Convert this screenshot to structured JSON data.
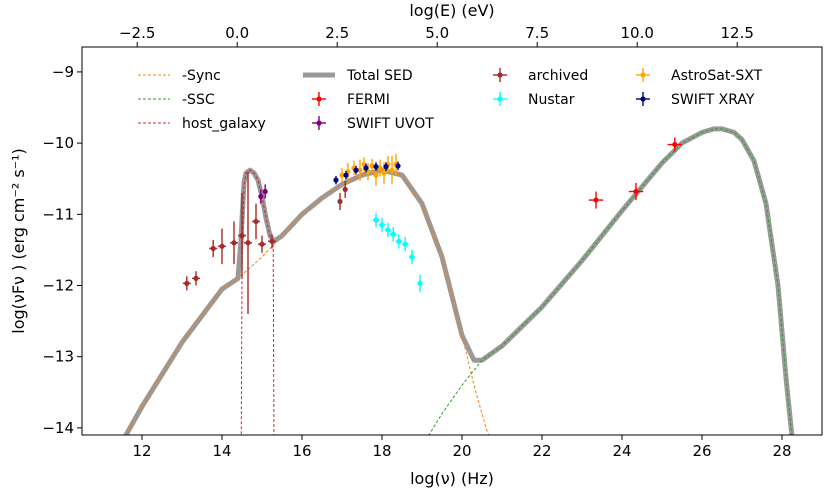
{
  "chart_data": {
    "type": "scatter",
    "xlabel": "log(ν)  (Hz)",
    "ylabel": "log(νFν )  (erg cm⁻² s⁻¹)",
    "top_xlabel": "log(E) (eV)",
    "xlim": [
      10.5,
      29.0
    ],
    "ylim": [
      -14.1,
      -8.65
    ],
    "top_xlim": [
      -3.88,
      14.62
    ],
    "x_ticks": [
      "12",
      "14",
      "16",
      "18",
      "20",
      "22",
      "24",
      "26",
      "28"
    ],
    "x_tick_values": [
      12,
      14,
      16,
      18,
      20,
      22,
      24,
      26,
      28
    ],
    "top_ticks": [
      "−2.5",
      "0.0",
      "2.5",
      "5.0",
      "7.5",
      "10.0",
      "12.5"
    ],
    "top_tick_values": [
      -2.5,
      0.0,
      2.5,
      5.0,
      7.5,
      10.0,
      12.5
    ],
    "y_ticks": [
      "−14",
      "−13",
      "−12",
      "−11",
      "−10",
      "−9"
    ],
    "y_tick_values": [
      -14,
      -13,
      -12,
      -11,
      -10,
      -9
    ],
    "grid": false,
    "legend_position": "top",
    "legend": [
      {
        "label": "-Sync",
        "style": "dashed",
        "color": "#ff7f0e"
      },
      {
        "label": "-SSC",
        "style": "dashed",
        "color": "#2ca02c"
      },
      {
        "label": "host_galaxy",
        "style": "dashed",
        "color": "#d62728"
      },
      {
        "label": "Total SED",
        "style": "thick",
        "color": "#999999"
      },
      {
        "label": "FERMI",
        "style": "errorbar",
        "color": "#ff0000"
      },
      {
        "label": "SWIFT UVOT",
        "style": "errorbar",
        "color": "#800080"
      },
      {
        "label": "archived",
        "style": "errorbar",
        "color": "#a52a2a"
      },
      {
        "label": "Nustar",
        "style": "errorbar",
        "color": "#00ffff"
      },
      {
        "label": "AstroSat-SXT",
        "style": "errorbar",
        "color": "#ffa500"
      },
      {
        "label": "SWIFT XRAY",
        "style": "errorbar",
        "color": "#000080"
      }
    ],
    "models": {
      "sync": {
        "color": "#ff7f0e",
        "x": [
          11.2,
          12.0,
          13.0,
          14.0,
          14.5,
          15.0,
          15.5,
          16.0,
          16.5,
          17.0,
          17.5,
          18.0,
          18.5,
          19.0,
          19.5,
          20.0,
          20.3,
          20.6,
          20.8
        ],
        "y": [
          -14.5,
          -13.7,
          -12.8,
          -12.05,
          -11.85,
          -11.6,
          -11.3,
          -11.0,
          -10.77,
          -10.58,
          -10.45,
          -10.38,
          -10.45,
          -10.85,
          -11.6,
          -12.7,
          -13.4,
          -14.0,
          -14.3
        ]
      },
      "ssc": {
        "color": "#2ca02c",
        "x": [
          18.9,
          19.5,
          20.0,
          20.5,
          21.0,
          22.0,
          23.0,
          24.0,
          25.0,
          25.5,
          26.0,
          26.3,
          26.5,
          26.8,
          27.0,
          27.3,
          27.6,
          27.9,
          28.1,
          28.3
        ],
        "y": [
          -14.35,
          -13.8,
          -13.4,
          -13.05,
          -12.85,
          -12.3,
          -11.65,
          -10.95,
          -10.28,
          -10.0,
          -9.85,
          -9.8,
          -9.8,
          -9.85,
          -9.95,
          -10.25,
          -10.85,
          -12.0,
          -13.3,
          -14.4
        ]
      },
      "host": {
        "color": "#d62728",
        "x": [
          14.48,
          14.5,
          14.55,
          14.6,
          14.7,
          14.8,
          14.9,
          15.0,
          15.1,
          15.2,
          15.28,
          15.3
        ],
        "y": [
          -14.3,
          -11.8,
          -10.6,
          -10.42,
          -10.38,
          -10.42,
          -10.52,
          -10.75,
          -11.05,
          -11.3,
          -11.45,
          -14.3
        ]
      },
      "total": {
        "color": "#999999",
        "x": [
          11.2,
          12.0,
          13.0,
          14.0,
          14.4,
          14.47,
          14.55,
          14.6,
          14.7,
          14.8,
          14.9,
          15.0,
          15.1,
          15.2,
          15.3,
          15.5,
          16.0,
          16.5,
          17.0,
          17.5,
          18.0,
          18.5,
          19.0,
          19.5,
          20.0,
          20.3,
          20.5,
          21.0,
          22.0,
          23.0,
          24.0,
          25.0,
          25.5,
          26.0,
          26.3,
          26.5,
          26.8,
          27.0,
          27.3,
          27.6,
          27.9,
          28.1,
          28.3
        ],
        "y": [
          -14.5,
          -13.7,
          -12.8,
          -12.05,
          -11.9,
          -11.4,
          -10.55,
          -10.42,
          -10.38,
          -10.42,
          -10.52,
          -10.75,
          -11.05,
          -11.3,
          -11.38,
          -11.3,
          -11.0,
          -10.77,
          -10.58,
          -10.45,
          -10.38,
          -10.45,
          -10.85,
          -11.6,
          -12.7,
          -13.05,
          -13.05,
          -12.85,
          -12.3,
          -11.65,
          -10.95,
          -10.28,
          -10.0,
          -9.85,
          -9.8,
          -9.8,
          -9.85,
          -9.95,
          -10.25,
          -10.85,
          -12.0,
          -13.3,
          -14.4
        ]
      }
    },
    "series": [
      {
        "name": "FERMI",
        "color": "#ff0000",
        "points": [
          {
            "x": 23.35,
            "y": -10.8,
            "xerr": 0.18,
            "yerr": 0.12
          },
          {
            "x": 24.35,
            "y": -10.68,
            "xerr": 0.18,
            "yerr": 0.12
          },
          {
            "x": 25.32,
            "y": -10.02,
            "xerr": 0.18,
            "yerr": 0.1
          }
        ]
      },
      {
        "name": "SWIFT UVOT",
        "color": "#800080",
        "points": [
          {
            "x": 14.97,
            "y": -10.75,
            "xerr": 0.05,
            "yerr": 0.1
          },
          {
            "x": 15.08,
            "y": -10.68,
            "xerr": 0.05,
            "yerr": 0.1
          }
        ]
      },
      {
        "name": "archived",
        "color": "#a52a2a",
        "points": [
          {
            "x": 13.12,
            "y": -11.97,
            "xerr": 0.1,
            "yerr": 0.1
          },
          {
            "x": 13.35,
            "y": -11.9,
            "xerr": 0.1,
            "yerr": 0.1
          },
          {
            "x": 13.78,
            "y": -11.48,
            "xerr": 0.1,
            "yerr": 0.12
          },
          {
            "x": 14.0,
            "y": -11.45,
            "xerr": 0.1,
            "yerr": 0.25
          },
          {
            "x": 14.3,
            "y": -11.4,
            "xerr": 0.1,
            "yerr": 0.3
          },
          {
            "x": 14.5,
            "y": -11.3,
            "xerr": 0.1,
            "yerr": 0.6
          },
          {
            "x": 14.65,
            "y": -11.4,
            "xerr": 0.1,
            "yerr": 1.0
          },
          {
            "x": 14.85,
            "y": -11.1,
            "xerr": 0.1,
            "yerr": 0.25
          },
          {
            "x": 15.0,
            "y": -11.42,
            "xerr": 0.1,
            "yerr": 0.12
          },
          {
            "x": 15.25,
            "y": -11.38,
            "xerr": 0.1,
            "yerr": 0.1
          },
          {
            "x": 16.95,
            "y": -10.82,
            "xerr": 0.05,
            "yerr": 0.12
          },
          {
            "x": 17.08,
            "y": -10.65,
            "xerr": 0.05,
            "yerr": 0.12
          }
        ]
      },
      {
        "name": "Nustar",
        "color": "#00ffff",
        "points": [
          {
            "x": 17.85,
            "y": -11.08,
            "xerr": 0.08,
            "yerr": 0.1
          },
          {
            "x": 18.0,
            "y": -11.15,
            "xerr": 0.08,
            "yerr": 0.1
          },
          {
            "x": 18.15,
            "y": -11.22,
            "xerr": 0.08,
            "yerr": 0.1
          },
          {
            "x": 18.28,
            "y": -11.28,
            "xerr": 0.08,
            "yerr": 0.1
          },
          {
            "x": 18.42,
            "y": -11.38,
            "xerr": 0.08,
            "yerr": 0.1
          },
          {
            "x": 18.58,
            "y": -11.42,
            "xerr": 0.08,
            "yerr": 0.1
          },
          {
            "x": 18.75,
            "y": -11.6,
            "xerr": 0.08,
            "yerr": 0.1
          },
          {
            "x": 18.95,
            "y": -11.97,
            "xerr": 0.05,
            "yerr": 0.12
          }
        ]
      },
      {
        "name": "AstroSat-SXT",
        "color": "#ffa500",
        "points": [
          {
            "x": 17.0,
            "y": -10.45,
            "xerr": 0.04,
            "yerr": 0.1
          },
          {
            "x": 17.15,
            "y": -10.4,
            "xerr": 0.04,
            "yerr": 0.12
          },
          {
            "x": 17.3,
            "y": -10.35,
            "xerr": 0.04,
            "yerr": 0.1
          },
          {
            "x": 17.45,
            "y": -10.38,
            "xerr": 0.04,
            "yerr": 0.15
          },
          {
            "x": 17.55,
            "y": -10.3,
            "xerr": 0.04,
            "yerr": 0.1
          },
          {
            "x": 17.65,
            "y": -10.4,
            "xerr": 0.04,
            "yerr": 0.12
          },
          {
            "x": 17.75,
            "y": -10.32,
            "xerr": 0.04,
            "yerr": 0.1
          },
          {
            "x": 17.85,
            "y": -10.45,
            "xerr": 0.04,
            "yerr": 0.15
          },
          {
            "x": 17.95,
            "y": -10.35,
            "xerr": 0.04,
            "yerr": 0.12
          },
          {
            "x": 18.05,
            "y": -10.42,
            "xerr": 0.04,
            "yerr": 0.15
          },
          {
            "x": 18.15,
            "y": -10.3,
            "xerr": 0.04,
            "yerr": 0.12
          },
          {
            "x": 18.25,
            "y": -10.38,
            "xerr": 0.04,
            "yerr": 0.2
          },
          {
            "x": 18.35,
            "y": -10.3,
            "xerr": 0.04,
            "yerr": 0.15
          }
        ]
      },
      {
        "name": "SWIFT XRAY",
        "color": "#000080",
        "points": [
          {
            "x": 16.85,
            "y": -10.52,
            "xerr": 0.05,
            "yerr": 0.06
          },
          {
            "x": 17.1,
            "y": -10.45,
            "xerr": 0.05,
            "yerr": 0.06
          },
          {
            "x": 17.35,
            "y": -10.38,
            "xerr": 0.05,
            "yerr": 0.06
          },
          {
            "x": 17.6,
            "y": -10.35,
            "xerr": 0.05,
            "yerr": 0.06
          },
          {
            "x": 17.85,
            "y": -10.33,
            "xerr": 0.05,
            "yerr": 0.06
          },
          {
            "x": 18.1,
            "y": -10.33,
            "xerr": 0.05,
            "yerr": 0.06
          },
          {
            "x": 18.4,
            "y": -10.32,
            "xerr": 0.05,
            "yerr": 0.06
          }
        ]
      }
    ]
  }
}
